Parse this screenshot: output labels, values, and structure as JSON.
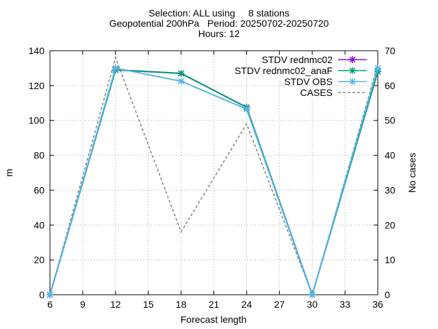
{
  "title_lines": [
    "Selection: ALL using     8 stations",
    "Geopotential 200hPa   Period: 20250702-20250720",
    "Hours: 12"
  ],
  "chart_data": {
    "type": "line",
    "xlabel": "Forecast length",
    "ylabel": "m",
    "y2label": "No cases",
    "x": [
      6,
      12,
      18,
      24,
      30,
      36
    ],
    "xticks": [
      6,
      9,
      12,
      15,
      18,
      21,
      24,
      27,
      30,
      33,
      36
    ],
    "xlim": [
      6,
      36
    ],
    "ylim": [
      0,
      140
    ],
    "yticks": [
      0,
      20,
      40,
      60,
      80,
      100,
      120,
      140
    ],
    "y2lim": [
      0,
      70
    ],
    "y2ticks": [
      0,
      10,
      20,
      30,
      40,
      50,
      60,
      70
    ],
    "grid": true,
    "legend_position": "top-right",
    "series": [
      {
        "name": "STDV rednmc02",
        "axis": "left",
        "color": "#9400d3",
        "marker": "x-star",
        "style": "solid",
        "values": [
          0,
          129,
          127,
          107.5,
          0,
          128
        ]
      },
      {
        "name": "STDV rednmc02_anaF",
        "axis": "left",
        "color": "#009e73",
        "marker": "x-star",
        "style": "solid",
        "values": [
          0,
          129,
          127,
          107.5,
          0,
          128
        ]
      },
      {
        "name": "STDV OBS",
        "axis": "left",
        "color": "#56b4e9",
        "marker": "x-star",
        "style": "solid",
        "values": [
          0,
          130,
          122.5,
          106.5,
          0,
          130
        ]
      },
      {
        "name": "CASES",
        "axis": "right",
        "color": "#808080",
        "marker": "none",
        "style": "dashed",
        "values": [
          0,
          68,
          18,
          49,
          0,
          66
        ]
      }
    ]
  }
}
